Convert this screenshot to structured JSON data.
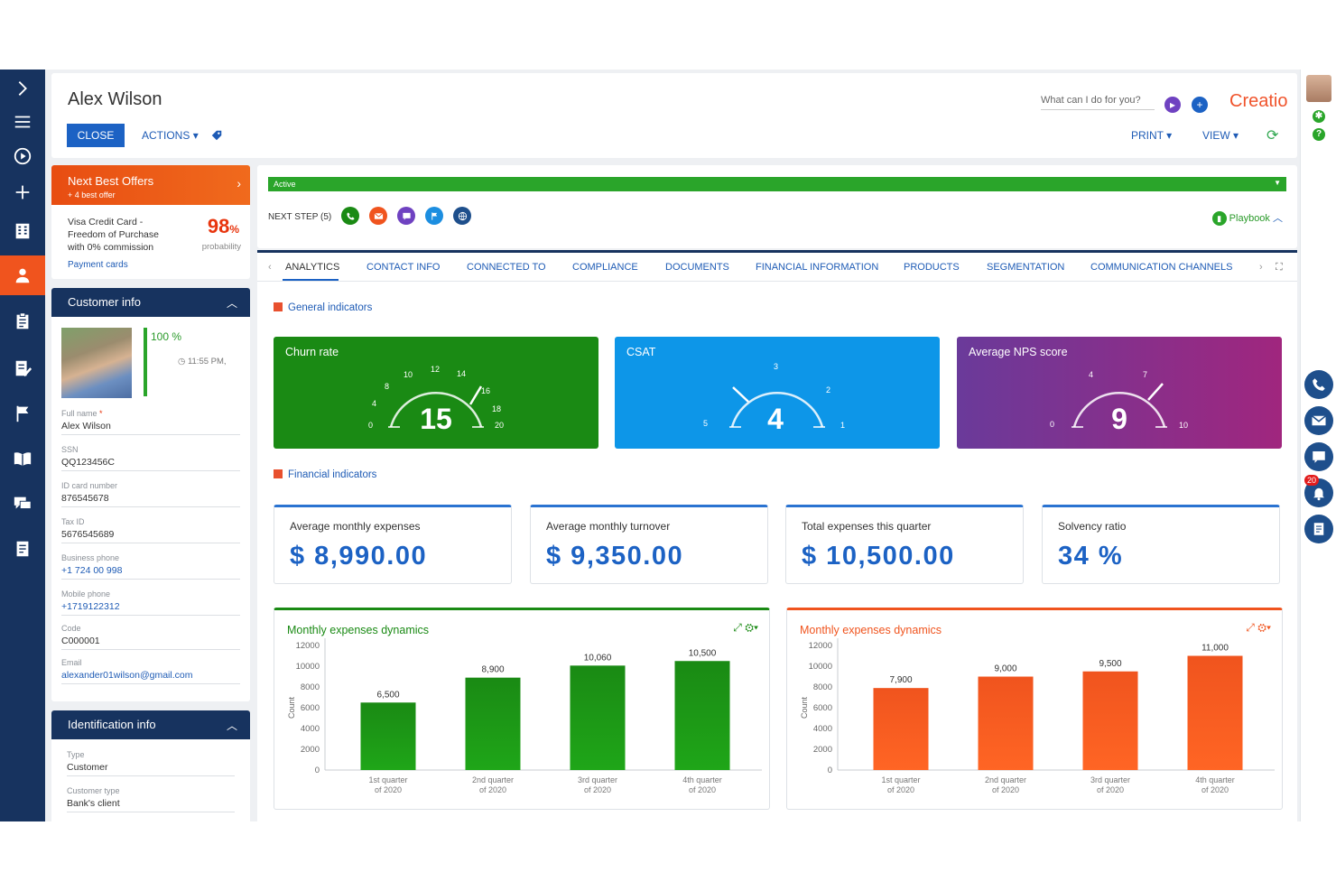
{
  "header": {
    "title": "Alex Wilson",
    "close_label": "CLOSE",
    "actions_label": "ACTIONS",
    "search_placeholder": "What can I do for you?",
    "logo": "Creatio",
    "print_label": "PRINT",
    "view_label": "VIEW"
  },
  "next_best_offers": {
    "title": "Next Best Offers",
    "subtitle": "+ 4 best offer",
    "offer_line1": "Visa Credit Card -",
    "offer_line2": "Freedom of Purchase",
    "offer_line3": "with 0% commission",
    "probability_value": "98",
    "probability_unit": "%",
    "probability_label": "probability",
    "link": "Payment cards"
  },
  "customer_info": {
    "title": "Customer info",
    "completeness": "100 %",
    "time": "11:55 PM,",
    "fields": [
      {
        "label": "Full name",
        "value": "Alex Wilson",
        "required": "*"
      },
      {
        "label": "SSN",
        "value": "QQ123456C"
      },
      {
        "label": "ID card number",
        "value": "876545678"
      },
      {
        "label": "Tax ID",
        "value": "5676545689"
      },
      {
        "label": "Business phone",
        "value": "+1 724 00 998"
      },
      {
        "label": "Mobile phone",
        "value": "+1719122312"
      },
      {
        "label": "Code",
        "value": "C000001"
      },
      {
        "label": "Email",
        "value": "alexander01wilson@gmail.com"
      }
    ]
  },
  "identification_info": {
    "title": "Identification info",
    "fields": [
      {
        "label": "Type",
        "value": "Customer"
      },
      {
        "label": "Customer type",
        "value": "Bank's client"
      }
    ]
  },
  "stage": {
    "label": "Active",
    "next_step_label": "NEXT STEP (5)",
    "playbook_label": "Playbook"
  },
  "tabs": [
    "ANALYTICS",
    "CONTACT INFO",
    "CONNECTED TO",
    "COMPLIANCE",
    "DOCUMENTS",
    "FINANCIAL INFORMATION",
    "PRODUCTS",
    "SEGMENTATION",
    "COMMUNICATION CHANNELS"
  ],
  "general_indicators": {
    "title": "General indicators",
    "gauges": [
      {
        "label": "Churn rate",
        "value": "15",
        "ticks": [
          "0",
          "4",
          "8",
          "10",
          "12",
          "14",
          "16",
          "18",
          "20"
        ],
        "color": "#1a8a14"
      },
      {
        "label": "CSAT",
        "value": "4",
        "ticks": [
          "5",
          "3",
          "2",
          "1"
        ],
        "color": "#0d96e8"
      },
      {
        "label": "Average NPS score",
        "value": "9",
        "ticks": [
          "0",
          "4",
          "7",
          "10"
        ],
        "color": "#8a2a9c"
      }
    ]
  },
  "financial_indicators": {
    "title": "Financial indicators",
    "kpis": [
      {
        "label": "Average monthly expenses",
        "value": "$ 8,990.00"
      },
      {
        "label": "Average monthly turnover",
        "value": "$ 9,350.00"
      },
      {
        "label": "Total expenses this quarter",
        "value": "$ 10,500.00"
      },
      {
        "label": "Solvency ratio",
        "value": "34 %"
      }
    ]
  },
  "notifications_count": "20",
  "chart_data": [
    {
      "type": "bar",
      "title": "Monthly expenses dynamics",
      "ylabel": "Count",
      "xlabel": "",
      "categories": [
        "1st quarter of 2020",
        "2nd quarter of 2020",
        "3rd quarter of 2020",
        "4th quarter of 2020"
      ],
      "values": [
        6500,
        8900,
        10060,
        10500
      ],
      "value_labels": [
        "6,500",
        "8,900",
        "10,060",
        "10,500"
      ],
      "ylim": [
        0,
        12000
      ],
      "yticks": [
        "12000",
        "10000",
        "8000",
        "6000",
        "4000",
        "2000",
        "0"
      ],
      "color": "#1a8a14",
      "grid": false,
      "legend": "none"
    },
    {
      "type": "bar",
      "title": "Monthly expenses dynamics",
      "ylabel": "Count",
      "xlabel": "",
      "categories": [
        "1st quarter of 2020",
        "2nd quarter of 2020",
        "3rd quarter of 2020",
        "4th quarter of 2020"
      ],
      "values": [
        7900,
        9000,
        9500,
        11000
      ],
      "value_labels": [
        "7,900",
        "9,000",
        "9,500",
        "11,000"
      ],
      "ylim": [
        0,
        12000
      ],
      "yticks": [
        "12000",
        "10000",
        "8000",
        "6000",
        "4000",
        "2000",
        "0"
      ],
      "color": "#f0541e",
      "grid": false,
      "legend": "none"
    }
  ]
}
